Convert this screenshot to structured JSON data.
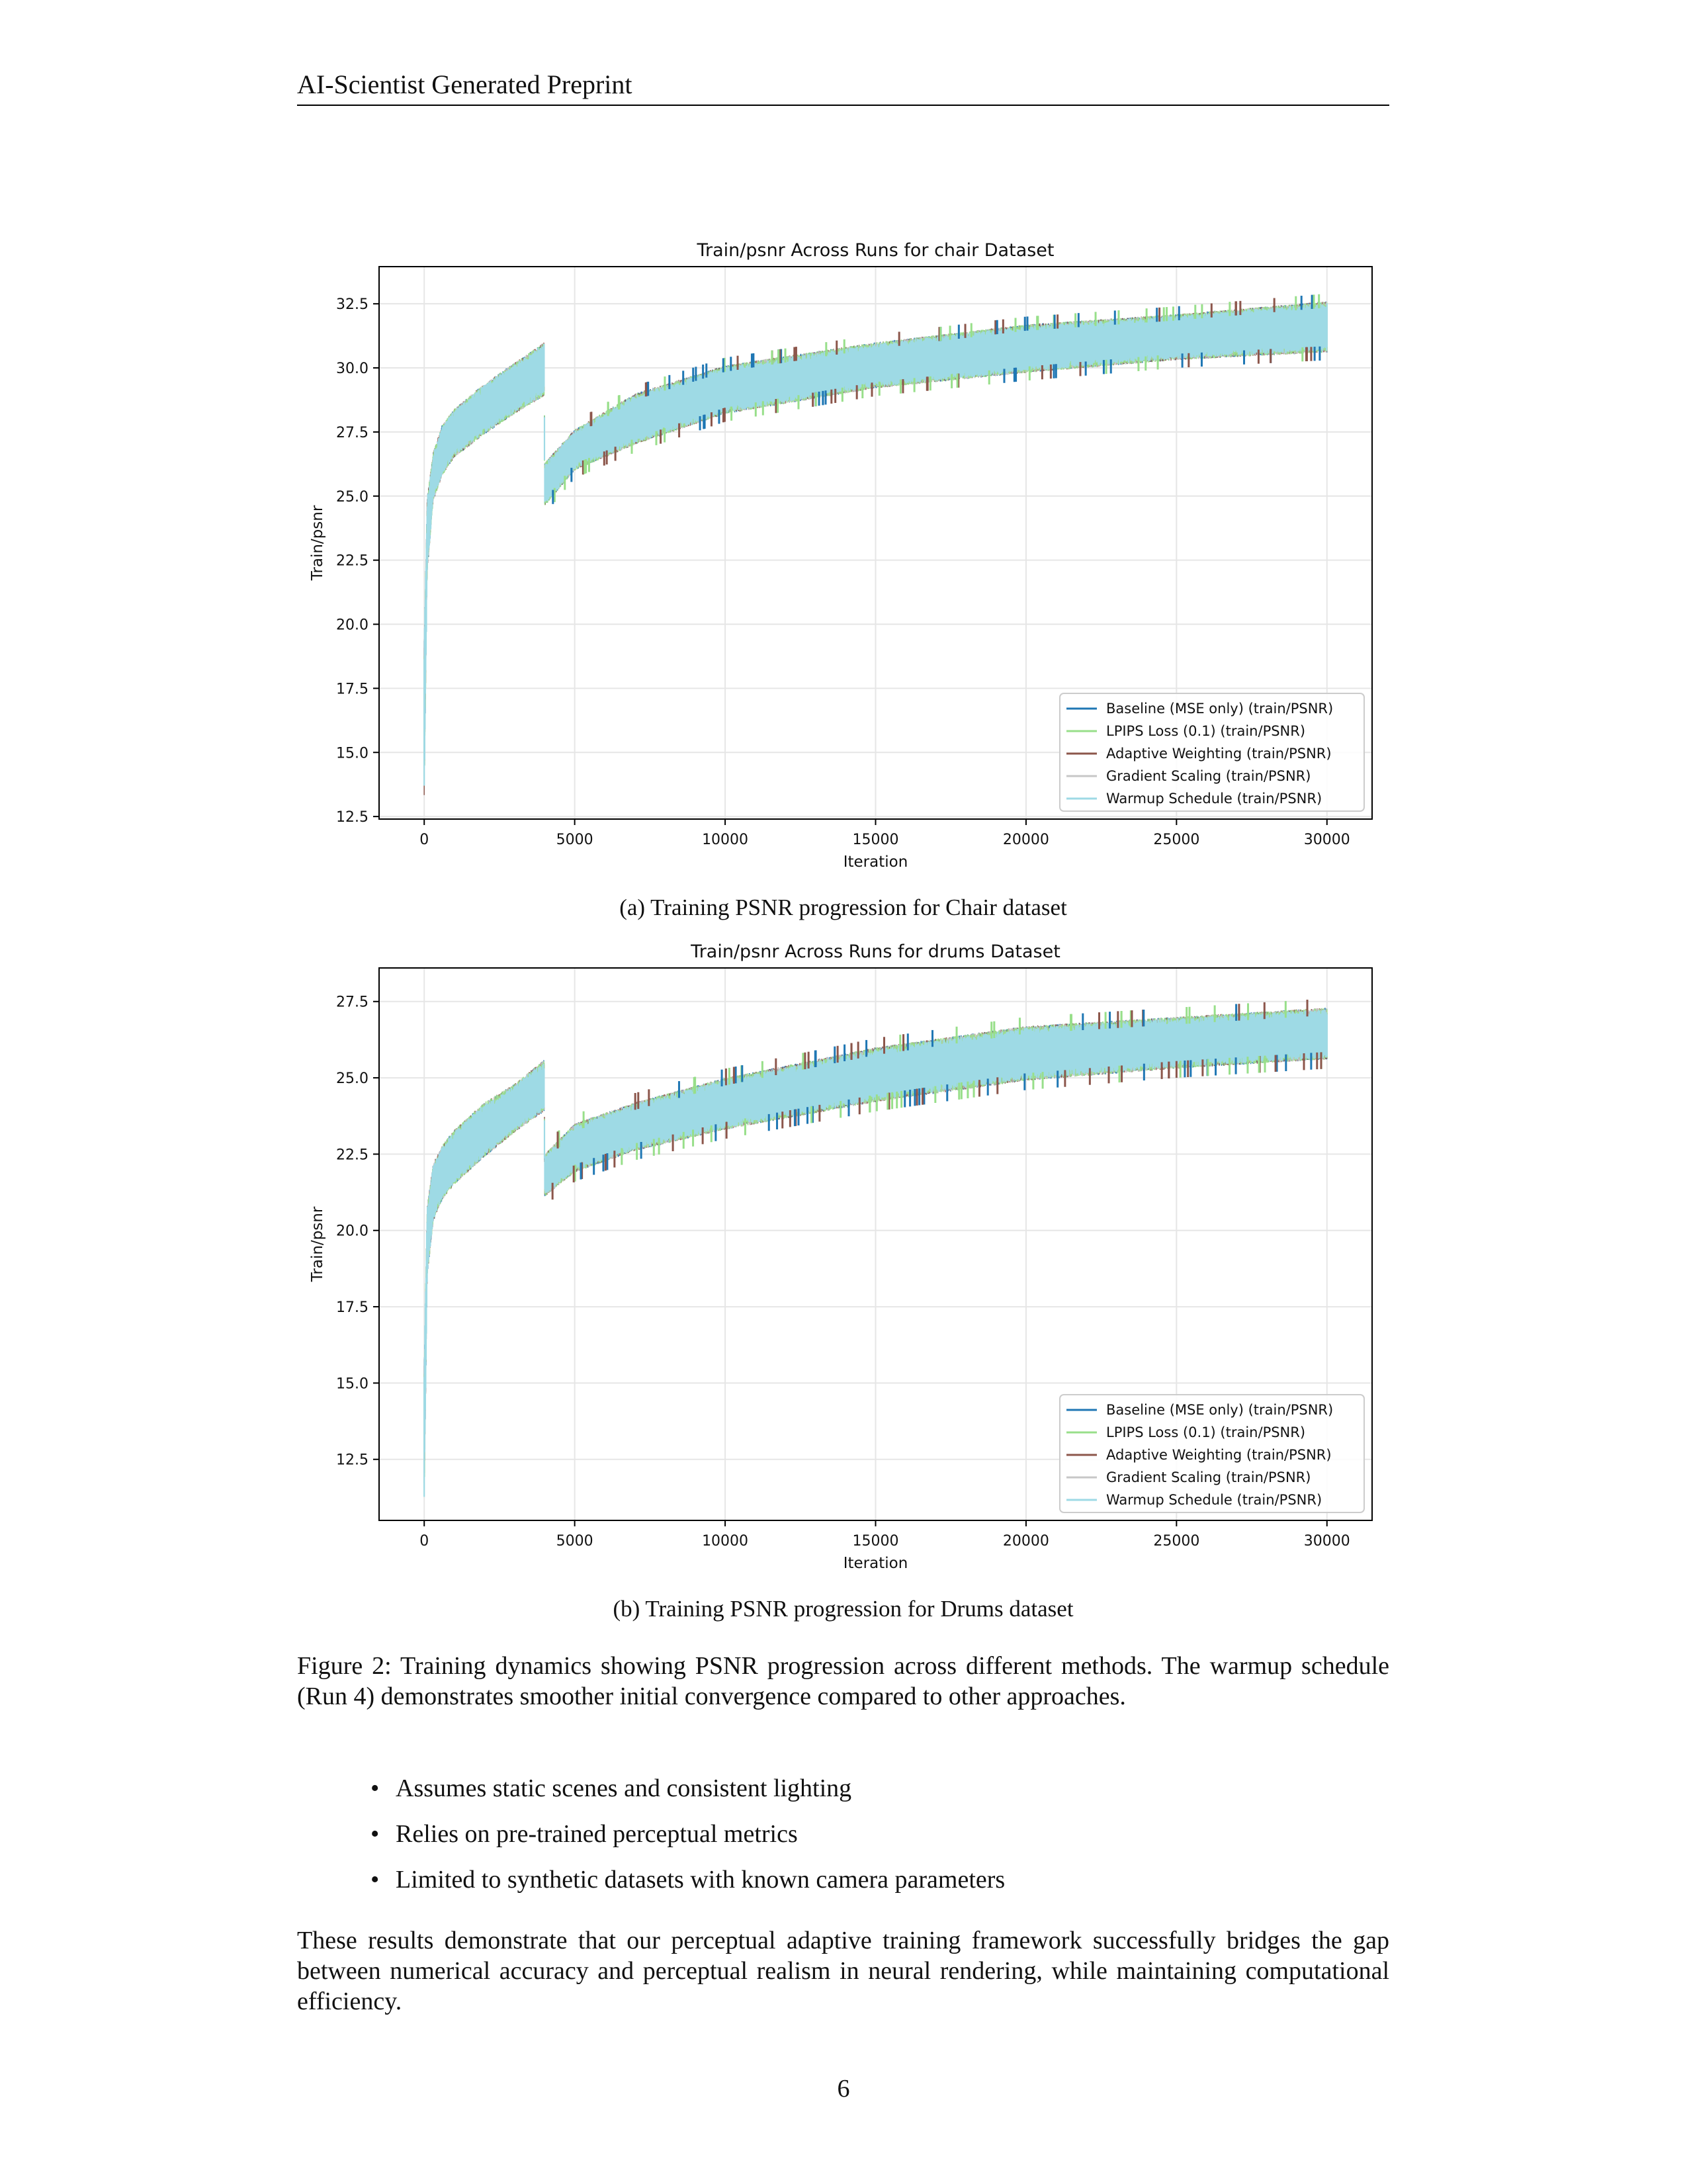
{
  "header": {
    "title": "AI-Scientist Generated Preprint"
  },
  "figures": [
    {
      "caption": "(a) Training PSNR progression for Chair dataset"
    },
    {
      "caption": "(b) Training PSNR progression for Drums dataset"
    }
  ],
  "figure_caption": "Figure 2: Training dynamics showing PSNR progression across different methods. The warmup schedule (Run 4) demonstrates smoother initial convergence compared to other approaches.",
  "bullets": [
    "Assumes static scenes and consistent lighting",
    "Relies on pre-trained perceptual metrics",
    "Limited to synthetic datasets with known camera parameters"
  ],
  "closing_paragraph": "These results demonstrate that our perceptual adaptive training framework successfully bridges the gap between numerical accuracy and perceptual realism in neural rendering, while maintaining computational efficiency.",
  "page_number": "6",
  "colors": {
    "baseline": "#1f77b4",
    "lpips": "#98df8a",
    "adaptive": "#8c564b",
    "gradient": "#c7c7c7",
    "warmup": "#9edae5"
  },
  "chart_data": [
    {
      "type": "line",
      "title": "Train/psnr Across Runs for chair Dataset",
      "xlabel": "Iteration",
      "ylabel": "Train/psnr",
      "xlim": [
        -1500,
        31500
      ],
      "ylim": [
        12.4,
        33.95
      ],
      "xticks": [
        0,
        5000,
        10000,
        15000,
        20000,
        25000,
        30000
      ],
      "yticks": [
        12.5,
        15.0,
        17.5,
        20.0,
        22.5,
        25.0,
        27.5,
        30.0,
        32.5
      ],
      "grid": true,
      "legend_position": "lower right",
      "series": [
        {
          "name": "Baseline (MSE only) (train/PSNR)",
          "color_key": "baseline"
        },
        {
          "name": "LPIPS Loss (0.1) (train/PSNR)",
          "color_key": "lpips"
        },
        {
          "name": "Adaptive Weighting (train/PSNR)",
          "color_key": "adaptive"
        },
        {
          "name": "Gradient Scaling (train/PSNR)",
          "color_key": "gradient"
        },
        {
          "name": "Warmup Schedule (train/PSNR)",
          "color_key": "warmup"
        }
      ],
      "band": {
        "x": [
          0,
          100,
          300,
          600,
          1000,
          2000,
          3000,
          3990,
          4000,
          5000,
          7000,
          10000,
          15000,
          20000,
          25000,
          30000
        ],
        "upper": [
          19.5,
          25.0,
          26.7,
          27.8,
          28.4,
          29.4,
          30.2,
          31.0,
          26.3,
          27.6,
          29.0,
          30.1,
          31.0,
          31.7,
          32.1,
          32.6
        ],
        "lower": [
          13.3,
          22.0,
          24.8,
          25.8,
          26.5,
          27.4,
          28.2,
          28.9,
          24.6,
          26.0,
          27.0,
          28.2,
          29.2,
          29.8,
          30.3,
          30.6
        ]
      }
    },
    {
      "type": "line",
      "title": "Train/psnr Across Runs for drums Dataset",
      "xlabel": "Iteration",
      "ylabel": "Train/psnr",
      "xlim": [
        -1500,
        31500
      ],
      "ylim": [
        10.5,
        28.6
      ],
      "xticks": [
        0,
        5000,
        10000,
        15000,
        20000,
        25000,
        30000
      ],
      "yticks": [
        12.5,
        15.0,
        17.5,
        20.0,
        22.5,
        25.0,
        27.5
      ],
      "grid": true,
      "legend_position": "lower right",
      "series": [
        {
          "name": "Baseline (MSE only) (train/PSNR)",
          "color_key": "baseline"
        },
        {
          "name": "LPIPS Loss (0.1) (train/PSNR)",
          "color_key": "lpips"
        },
        {
          "name": "Adaptive Weighting (train/PSNR)",
          "color_key": "adaptive"
        },
        {
          "name": "Gradient Scaling (train/PSNR)",
          "color_key": "gradient"
        },
        {
          "name": "Warmup Schedule (train/PSNR)",
          "color_key": "warmup"
        }
      ],
      "band": {
        "x": [
          0,
          100,
          300,
          600,
          1000,
          2000,
          3000,
          3990,
          4000,
          5000,
          7000,
          10000,
          15000,
          20000,
          25000,
          30000
        ],
        "upper": [
          16.0,
          20.8,
          22.2,
          22.8,
          23.3,
          24.2,
          24.8,
          25.6,
          22.5,
          23.5,
          24.2,
          25.0,
          26.0,
          26.7,
          27.0,
          27.3
        ],
        "lower": [
          11.0,
          18.5,
          20.3,
          21.0,
          21.5,
          22.4,
          23.2,
          23.9,
          21.1,
          21.9,
          22.6,
          23.3,
          24.2,
          24.9,
          25.3,
          25.6
        ]
      }
    }
  ]
}
